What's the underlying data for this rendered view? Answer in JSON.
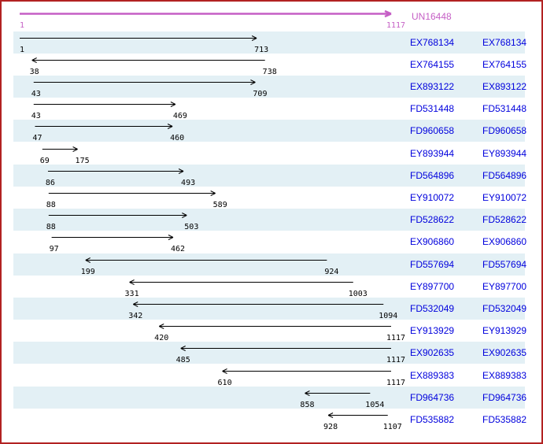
{
  "colors": {
    "frame_border": "#B22222",
    "row_band": "#E3F0F5",
    "reference_accent": "#C55FC5",
    "accession_link": "#0000DD",
    "alignment_arrow": "#000000",
    "page_background": "#FFFFFF"
  },
  "chart_data": {
    "type": "bar",
    "subtype": "horizontal-interval-alignment",
    "axis_range": [
      1,
      1117
    ],
    "legend_position": "none",
    "grid": false,
    "reference": {
      "label": "UN16448",
      "start": 1,
      "end": 1117,
      "direction": "right"
    },
    "series": [
      {
        "id": "EX768134",
        "start": 1,
        "end": 713,
        "direction": "right"
      },
      {
        "id": "EX764155",
        "start": 38,
        "end": 738,
        "direction": "left"
      },
      {
        "id": "EX893122",
        "start": 43,
        "end": 709,
        "direction": "right"
      },
      {
        "id": "FD531448",
        "start": 43,
        "end": 469,
        "direction": "right"
      },
      {
        "id": "FD960658",
        "start": 47,
        "end": 460,
        "direction": "right"
      },
      {
        "id": "EY893944",
        "start": 69,
        "end": 175,
        "direction": "right"
      },
      {
        "id": "FD564896",
        "start": 86,
        "end": 493,
        "direction": "right"
      },
      {
        "id": "EY910072",
        "start": 88,
        "end": 589,
        "direction": "right"
      },
      {
        "id": "FD528622",
        "start": 88,
        "end": 503,
        "direction": "right"
      },
      {
        "id": "EX906860",
        "start": 97,
        "end": 462,
        "direction": "right"
      },
      {
        "id": "FD557694",
        "start": 199,
        "end": 924,
        "direction": "left"
      },
      {
        "id": "EY897700",
        "start": 331,
        "end": 1003,
        "direction": "left"
      },
      {
        "id": "FD532049",
        "start": 342,
        "end": 1094,
        "direction": "left"
      },
      {
        "id": "EY913929",
        "start": 420,
        "end": 1117,
        "direction": "left"
      },
      {
        "id": "EX902635",
        "start": 485,
        "end": 1117,
        "direction": "left"
      },
      {
        "id": "EX889383",
        "start": 610,
        "end": 1117,
        "direction": "left"
      },
      {
        "id": "FD964736",
        "start": 858,
        "end": 1054,
        "direction": "left"
      },
      {
        "id": "FD535882",
        "start": 928,
        "end": 1107,
        "direction": "left"
      }
    ]
  }
}
